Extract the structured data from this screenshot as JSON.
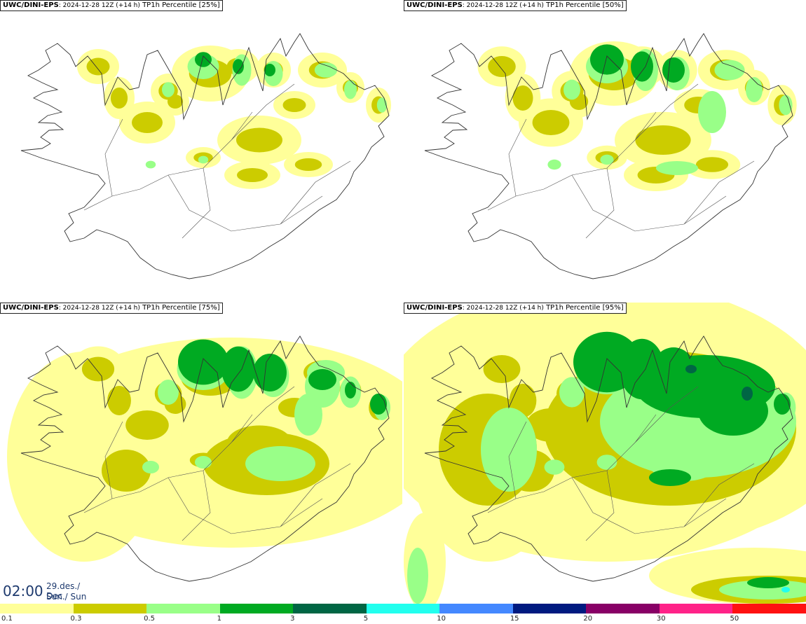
{
  "panels": [
    {
      "model": "UWC/DINI-EPS",
      "run": ": 2024-12-28 12Z (+14 h)",
      "product": " TP1h Percentile [25%]",
      "level": 1
    },
    {
      "model": "UWC/DINI-EPS",
      "run": ": 2024-12-28 12Z (+14 h)",
      "product": " TP1h Percentile [50%]",
      "level": 2
    },
    {
      "model": "UWC/DINI-EPS",
      "run": ": 2024-12-28 12Z (+14 h)",
      "product": " TP1h Percentile [75%]",
      "level": 3
    },
    {
      "model": "UWC/DINI-EPS",
      "run": ": 2024-12-28 12Z (+14 h)",
      "product": " TP1h Percentile [95%]",
      "level": 4
    }
  ],
  "clock": {
    "time": "02:00",
    "date_line": "29.des./ Dec",
    "day_line": "Sun./ Sun"
  },
  "legend": {
    "colors": [
      "#ffff99",
      "#cccc00",
      "#99ff88",
      "#00aa22",
      "#006644",
      "#22ffee",
      "#4488ff",
      "#001a80",
      "#880066",
      "#ff2288",
      "#ff1111"
    ],
    "labels": [
      "0.1",
      "0.3",
      "0.5",
      "1",
      "3",
      "5",
      "10",
      "15",
      "20",
      "30",
      "50"
    ]
  }
}
